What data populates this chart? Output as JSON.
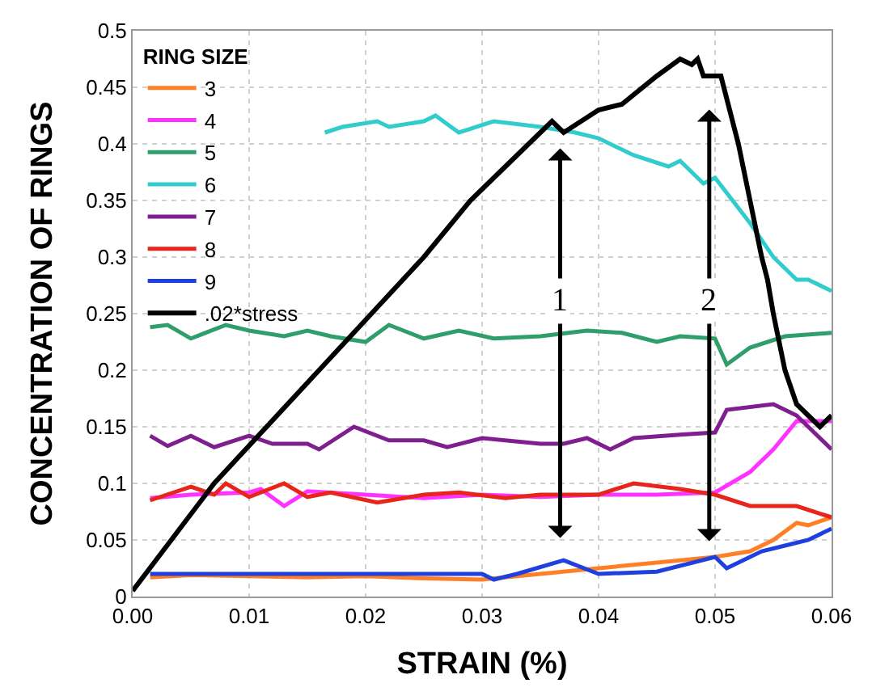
{
  "chart_data": {
    "type": "line",
    "xlabel": "STRAIN (%)",
    "ylabel": "CONCENTRATION OF RINGS",
    "legend_title": "RING SIZE",
    "legend": "top left",
    "grid": true,
    "marker": "none",
    "line_style": "solid",
    "xlim": [
      0,
      0.06
    ],
    "ylim": [
      0,
      0.5
    ],
    "xticks": [
      {
        "value": 0,
        "label": "0.00"
      },
      {
        "value": 0.01,
        "label": "0.01"
      },
      {
        "value": 0.02,
        "label": "0.02"
      },
      {
        "value": 0.03,
        "label": "0.03"
      },
      {
        "value": 0.04,
        "label": "0.04"
      },
      {
        "value": 0.05,
        "label": "0.05"
      },
      {
        "value": 0.06,
        "label": "0.06"
      }
    ],
    "yticks": [
      0,
      0.05,
      0.1,
      0.15,
      0.2,
      0.25,
      0.3,
      0.35,
      0.4,
      0.45,
      0.5
    ],
    "series": [
      {
        "name": "3",
        "color": "#ff7f27",
        "x": [
          0.0015,
          0.005,
          0.01,
          0.015,
          0.02,
          0.025,
          0.03,
          0.035,
          0.04,
          0.045,
          0.05,
          0.053,
          0.055,
          0.057,
          0.058,
          0.06
        ],
        "values": [
          0.017,
          0.019,
          0.018,
          0.017,
          0.018,
          0.016,
          0.015,
          0.02,
          0.025,
          0.03,
          0.035,
          0.04,
          0.05,
          0.065,
          0.063,
          0.07
        ]
      },
      {
        "name": "4",
        "color": "#ff33ff",
        "x": [
          0.0015,
          0.005,
          0.01,
          0.011,
          0.013,
          0.015,
          0.02,
          0.025,
          0.03,
          0.035,
          0.04,
          0.045,
          0.05,
          0.053,
          0.055,
          0.057,
          0.06
        ],
        "values": [
          0.087,
          0.09,
          0.092,
          0.095,
          0.08,
          0.093,
          0.09,
          0.087,
          0.09,
          0.088,
          0.09,
          0.09,
          0.092,
          0.11,
          0.13,
          0.155,
          0.155
        ]
      },
      {
        "name": "5",
        "color": "#2e9e6a",
        "x": [
          0.0015,
          0.003,
          0.005,
          0.008,
          0.01,
          0.013,
          0.015,
          0.017,
          0.02,
          0.022,
          0.025,
          0.028,
          0.031,
          0.035,
          0.039,
          0.042,
          0.045,
          0.047,
          0.05,
          0.051,
          0.053,
          0.056,
          0.06
        ],
        "values": [
          0.238,
          0.24,
          0.228,
          0.24,
          0.235,
          0.23,
          0.235,
          0.23,
          0.225,
          0.24,
          0.228,
          0.235,
          0.228,
          0.23,
          0.235,
          0.233,
          0.225,
          0.23,
          0.228,
          0.205,
          0.22,
          0.23,
          0.233
        ]
      },
      {
        "name": "6",
        "color": "#33cccc",
        "x": [
          0.0165,
          0.018,
          0.021,
          0.022,
          0.025,
          0.026,
          0.028,
          0.031,
          0.035,
          0.038,
          0.04,
          0.043,
          0.046,
          0.047,
          0.049,
          0.05,
          0.053,
          0.055,
          0.057,
          0.058,
          0.06
        ],
        "values": [
          0.41,
          0.415,
          0.42,
          0.415,
          0.42,
          0.425,
          0.41,
          0.42,
          0.415,
          0.41,
          0.405,
          0.39,
          0.38,
          0.385,
          0.365,
          0.37,
          0.33,
          0.3,
          0.28,
          0.28,
          0.27
        ]
      },
      {
        "name": "7",
        "color": "#7f1f8f",
        "x": [
          0.0015,
          0.003,
          0.005,
          0.007,
          0.01,
          0.012,
          0.015,
          0.016,
          0.019,
          0.022,
          0.025,
          0.027,
          0.03,
          0.035,
          0.037,
          0.039,
          0.041,
          0.043,
          0.047,
          0.05,
          0.051,
          0.055,
          0.057,
          0.058,
          0.06
        ],
        "values": [
          0.142,
          0.133,
          0.142,
          0.132,
          0.142,
          0.135,
          0.135,
          0.13,
          0.15,
          0.138,
          0.138,
          0.132,
          0.14,
          0.135,
          0.135,
          0.14,
          0.13,
          0.14,
          0.143,
          0.145,
          0.165,
          0.17,
          0.16,
          0.15,
          0.13
        ]
      },
      {
        "name": "8",
        "color": "#e8251b",
        "x": [
          0.0015,
          0.005,
          0.007,
          0.008,
          0.01,
          0.013,
          0.015,
          0.017,
          0.021,
          0.025,
          0.028,
          0.032,
          0.035,
          0.04,
          0.043,
          0.047,
          0.05,
          0.053,
          0.057,
          0.06
        ],
        "values": [
          0.085,
          0.097,
          0.09,
          0.1,
          0.088,
          0.1,
          0.088,
          0.092,
          0.083,
          0.09,
          0.092,
          0.087,
          0.09,
          0.09,
          0.1,
          0.095,
          0.09,
          0.08,
          0.08,
          0.07
        ]
      },
      {
        "name": "9",
        "color": "#1f3fdf",
        "x": [
          0.0015,
          0.01,
          0.02,
          0.03,
          0.031,
          0.033,
          0.037,
          0.04,
          0.045,
          0.05,
          0.051,
          0.054,
          0.056,
          0.058,
          0.06
        ],
        "values": [
          0.02,
          0.02,
          0.02,
          0.02,
          0.015,
          0.02,
          0.032,
          0.02,
          0.022,
          0.035,
          0.025,
          0.04,
          0.045,
          0.05,
          0.06
        ]
      },
      {
        "name": ".02*stress",
        "color": "#000000",
        "x": [
          0,
          0.007,
          0.016,
          0.025,
          0.029,
          0.034,
          0.036,
          0.037,
          0.04,
          0.042,
          0.045,
          0.047,
          0.048,
          0.0485,
          0.049,
          0.0505,
          0.051,
          0.052,
          0.053,
          0.054,
          0.0545,
          0.055,
          0.056,
          0.057,
          0.058,
          0.059,
          0.06
        ],
        "values": [
          0.005,
          0.1,
          0.2,
          0.3,
          0.35,
          0.4,
          0.42,
          0.41,
          0.43,
          0.435,
          0.46,
          0.475,
          0.47,
          0.475,
          0.46,
          0.46,
          0.44,
          0.4,
          0.35,
          0.3,
          0.28,
          0.25,
          0.2,
          0.17,
          0.16,
          0.15,
          0.16
        ]
      }
    ],
    "annotations": [
      {
        "text": "1",
        "x": 0.0367,
        "y": 0.261
      },
      {
        "text": "2",
        "x": 0.0495,
        "y": 0.261
      }
    ]
  }
}
